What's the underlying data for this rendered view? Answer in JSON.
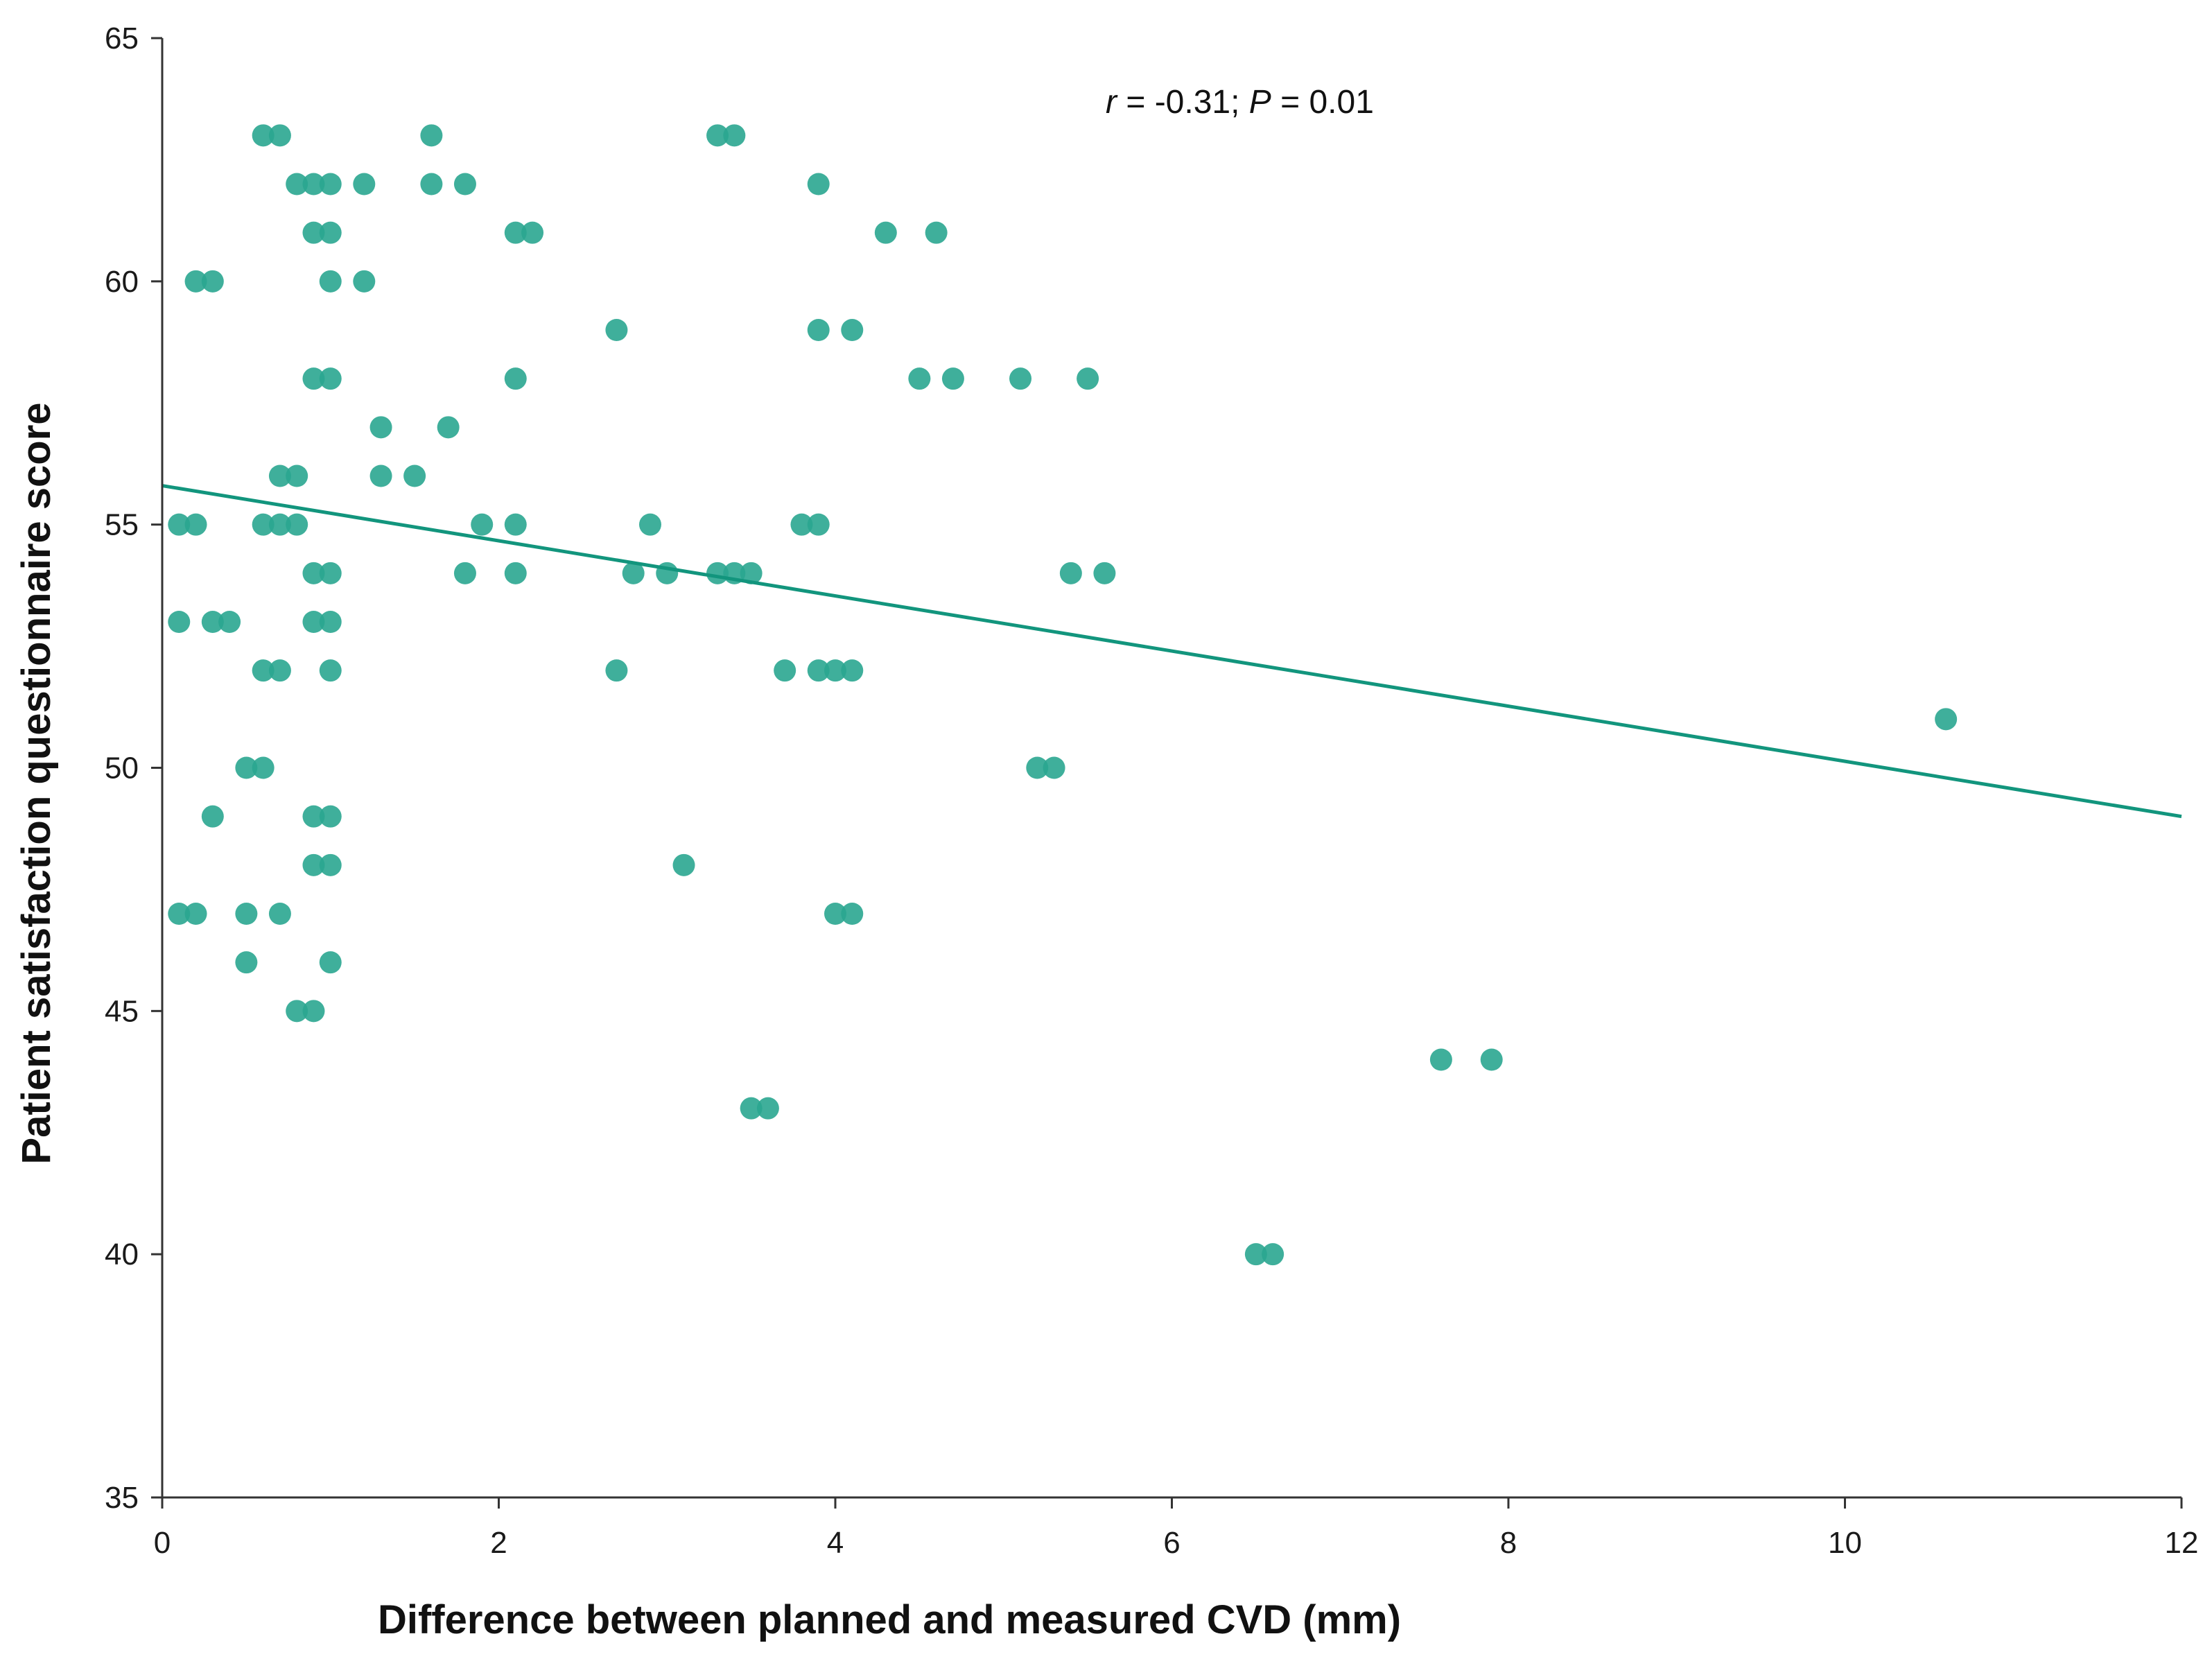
{
  "chart_data": {
    "type": "scatter",
    "title": "",
    "xlabel": "Difference between planned and measured CVD (mm)",
    "ylabel": "Patient satisfaction questionnaire score",
    "xlim": [
      0,
      12
    ],
    "ylim": [
      35,
      65
    ],
    "x_ticks": [
      "0",
      "2",
      "4",
      "6",
      "8",
      "10",
      "12"
    ],
    "y_ticks": [
      "35",
      "40",
      "45",
      "50",
      "55",
      "60",
      "65"
    ],
    "grid": false,
    "annotation": {
      "r_symbol": "r",
      "r_text": " = -0.31; ",
      "p_symbol": "P",
      "p_text": " = 0.01"
    },
    "trendline": {
      "x": [
        0,
        12
      ],
      "y": [
        55.8,
        49.0
      ]
    },
    "colors": {
      "point": "#2aa690",
      "point_dark": "#0e9a82",
      "line": "#12957d",
      "axis": "#333333"
    },
    "points": [
      [
        0.6,
        63
      ],
      [
        0.7,
        63
      ],
      [
        1.6,
        63
      ],
      [
        3.3,
        63
      ],
      [
        3.4,
        63
      ],
      [
        0.8,
        62
      ],
      [
        0.9,
        62
      ],
      [
        1.0,
        62
      ],
      [
        1.2,
        62
      ],
      [
        1.6,
        62
      ],
      [
        1.8,
        62
      ],
      [
        3.9,
        62
      ],
      [
        0.9,
        61
      ],
      [
        1.0,
        61
      ],
      [
        2.1,
        61
      ],
      [
        2.2,
        61
      ],
      [
        4.3,
        61
      ],
      [
        4.6,
        61
      ],
      [
        0.2,
        60
      ],
      [
        0.3,
        60
      ],
      [
        1.0,
        60
      ],
      [
        1.2,
        60
      ],
      [
        2.7,
        59
      ],
      [
        3.9,
        59
      ],
      [
        4.1,
        59
      ],
      [
        0.9,
        58
      ],
      [
        1.0,
        58
      ],
      [
        2.1,
        58
      ],
      [
        4.5,
        58
      ],
      [
        4.7,
        58
      ],
      [
        5.1,
        58
      ],
      [
        5.5,
        58
      ],
      [
        1.3,
        57
      ],
      [
        1.7,
        57
      ],
      [
        0.7,
        56
      ],
      [
        0.8,
        56
      ],
      [
        1.3,
        56
      ],
      [
        1.5,
        56
      ],
      [
        0.1,
        55
      ],
      [
        0.2,
        55
      ],
      [
        0.6,
        55
      ],
      [
        0.7,
        55
      ],
      [
        0.8,
        55
      ],
      [
        1.9,
        55
      ],
      [
        2.1,
        55
      ],
      [
        2.9,
        55
      ],
      [
        3.8,
        55
      ],
      [
        3.9,
        55
      ],
      [
        0.9,
        54
      ],
      [
        1.0,
        54
      ],
      [
        1.8,
        54
      ],
      [
        2.1,
        54
      ],
      [
        2.8,
        54
      ],
      [
        3.0,
        54
      ],
      [
        3.3,
        54
      ],
      [
        3.4,
        54
      ],
      [
        3.5,
        54
      ],
      [
        5.4,
        54
      ],
      [
        5.6,
        54
      ],
      [
        0.1,
        53
      ],
      [
        0.3,
        53
      ],
      [
        0.4,
        53
      ],
      [
        0.9,
        53
      ],
      [
        1.0,
        53
      ],
      [
        0.6,
        52
      ],
      [
        0.7,
        52
      ],
      [
        1.0,
        52
      ],
      [
        2.7,
        52
      ],
      [
        3.7,
        52
      ],
      [
        3.9,
        52
      ],
      [
        4.0,
        52
      ],
      [
        4.1,
        52
      ],
      [
        10.6,
        51
      ],
      [
        0.5,
        50
      ],
      [
        0.6,
        50
      ],
      [
        5.2,
        50
      ],
      [
        5.3,
        50
      ],
      [
        0.3,
        49
      ],
      [
        0.9,
        49
      ],
      [
        1.0,
        49
      ],
      [
        0.9,
        48
      ],
      [
        1.0,
        48
      ],
      [
        3.1,
        48
      ],
      [
        0.1,
        47
      ],
      [
        0.2,
        47
      ],
      [
        0.5,
        47
      ],
      [
        0.7,
        47
      ],
      [
        4.0,
        47
      ],
      [
        4.1,
        47
      ],
      [
        0.5,
        46
      ],
      [
        1.0,
        46
      ],
      [
        0.8,
        45
      ],
      [
        0.9,
        45
      ],
      [
        7.6,
        44
      ],
      [
        7.9,
        44
      ],
      [
        3.5,
        43
      ],
      [
        3.6,
        43
      ],
      [
        6.5,
        40
      ],
      [
        6.6,
        40
      ]
    ]
  }
}
